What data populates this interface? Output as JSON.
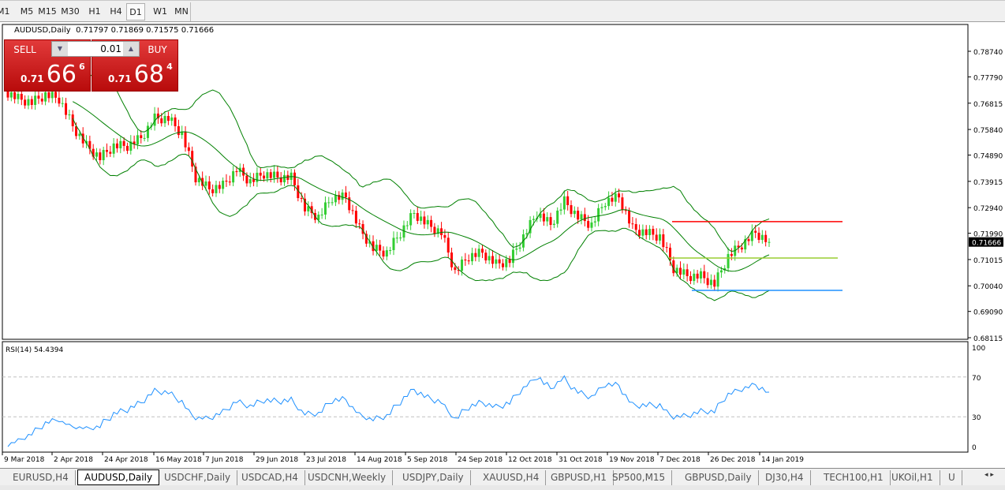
{
  "toolbar": {
    "timeframes": [
      "M1",
      "M5",
      "M15",
      "M30",
      "H1",
      "H4",
      "D1",
      "W1",
      "MN"
    ],
    "active": "D1"
  },
  "chart_header": {
    "symbol": "AUDUSD,Daily",
    "open": "0.71797",
    "high": "0.71869",
    "low": "0.71575",
    "close": "0.71666"
  },
  "trade_panel": {
    "sell_label": "SELL",
    "buy_label": "BUY",
    "lot": "0.01",
    "sell_price": {
      "big": "0.71",
      "main": "66",
      "sup": "6"
    },
    "buy_price": {
      "big": "0.71",
      "main": "68",
      "sup": "4"
    }
  },
  "colors": {
    "bull": "#32cd32",
    "bear": "#ff0000",
    "bands": "#008000",
    "rsi": "#1e90ff",
    "background": "#ffffff"
  },
  "chart_data": [
    {
      "type": "candlestick",
      "title": "AUDUSD,Daily",
      "y_ticks": [
        "0.78740",
        "0.77790",
        "0.76815",
        "0.75840",
        "0.74890",
        "0.73915",
        "0.72940",
        "0.71990",
        "0.71015",
        "0.70040",
        "0.69090",
        "0.68115"
      ],
      "ylim": [
        0.68115,
        0.7874
      ],
      "current_price_label": "0.71666",
      "x_ticks": [
        "9 Mar 2018",
        "2 Apr 2018",
        "24 Apr 2018",
        "16 May 2018",
        "7 Jun 2018",
        "29 Jun 2018",
        "23 Jul 2018",
        "14 Aug 2018",
        "5 Sep 2018",
        "24 Sep 2018",
        "12 Oct 2018",
        "31 Oct 2018",
        "19 Nov 2018",
        "7 Dec 2018",
        "26 Dec 2018",
        "14 Jan 2019"
      ],
      "closes": [
        0.7728,
        0.7698,
        0.7684,
        0.7713,
        0.7698,
        0.7596,
        0.7523,
        0.7479,
        0.7523,
        0.7523,
        0.7552,
        0.7625,
        0.7625,
        0.7567,
        0.7406,
        0.7362,
        0.7376,
        0.7435,
        0.7391,
        0.742,
        0.7406,
        0.7406,
        0.7289,
        0.7259,
        0.7332,
        0.7332,
        0.7215,
        0.7142,
        0.7127,
        0.7201,
        0.7274,
        0.723,
        0.7201,
        0.7054,
        0.7113,
        0.7127,
        0.7084,
        0.7098,
        0.7186,
        0.7274,
        0.723,
        0.7318,
        0.7259,
        0.723,
        0.7318,
        0.7332,
        0.7215,
        0.7201,
        0.7186,
        0.7069,
        0.704,
        0.704,
        0.701,
        0.7113,
        0.7157,
        0.7201,
        0.71666
      ],
      "indicator": "Bollinger Bands",
      "horizontal_lines": [
        {
          "price": 0.7242,
          "color": "#ff0000"
        },
        {
          "price": 0.7107,
          "color": "#9acd32"
        },
        {
          "price": 0.6987,
          "color": "#1e90ff"
        }
      ]
    },
    {
      "type": "line",
      "title": "RSI(14) 54.4394",
      "ylim": [
        0,
        100
      ],
      "y_ticks": [
        "100",
        "70",
        "30",
        "0"
      ],
      "levels": [
        70,
        30
      ]
    }
  ],
  "tabs": [
    "EURUSD,H4",
    "AUDUSD,Daily",
    "USDCHF,Daily",
    "USDCAD,H4",
    "USDCNH,Weekly",
    "USDJPY,Daily",
    "XAUUSD,H4",
    "GBPUSD,H1",
    "SP500,M15",
    "GBPUSD,Daily",
    "DJ30,H4",
    "TECH100,H1",
    "UKOil,H1",
    "U"
  ],
  "active_tab": "AUDUSD,Daily"
}
